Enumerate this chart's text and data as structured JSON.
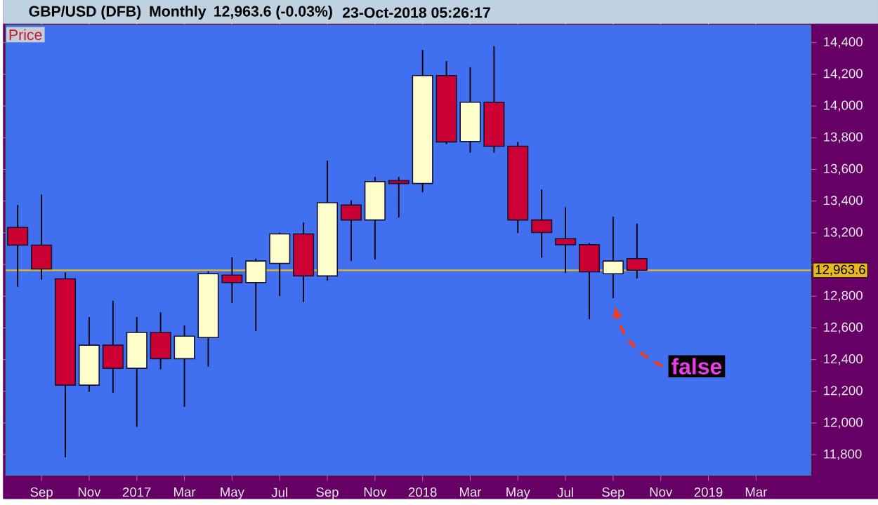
{
  "chart_data": {
    "type": "candlestick",
    "title": "GBP/USD (DFB)",
    "subtitle": "Monthly",
    "ylabel": "Price",
    "x": [
      "2016-08",
      "2016-09",
      "2016-10",
      "2016-11",
      "2016-12",
      "2017-01",
      "2017-02",
      "2017-03",
      "2017-04",
      "2017-05",
      "2017-06",
      "2017-07",
      "2017-08",
      "2017-09",
      "2017-10",
      "2017-11",
      "2017-12",
      "2018-01",
      "2018-02",
      "2018-03",
      "2018-04",
      "2018-05",
      "2018-06",
      "2018-07",
      "2018-08",
      "2018-09",
      "2018-10"
    ],
    "ohlc": [
      [
        13234,
        13375,
        12860,
        13122
      ],
      [
        13122,
        13441,
        12904,
        12972
      ],
      [
        12910,
        12950,
        11784,
        12239
      ],
      [
        12239,
        12668,
        12197,
        12491
      ],
      [
        12491,
        12772,
        12191,
        12345
      ],
      [
        12345,
        12668,
        11976,
        12571
      ],
      [
        12571,
        12698,
        12339,
        12406
      ],
      [
        12406,
        12615,
        12103,
        12548
      ],
      [
        12539,
        12957,
        12356,
        12942
      ],
      [
        12933,
        13045,
        12757,
        12886
      ],
      [
        12886,
        13037,
        12580,
        13022
      ],
      [
        13007,
        13200,
        12801,
        13193
      ],
      [
        13193,
        13266,
        12763,
        12928
      ],
      [
        12928,
        13655,
        12898,
        13390
      ],
      [
        13375,
        13405,
        13022,
        13281
      ],
      [
        13281,
        13552,
        13031,
        13523
      ],
      [
        13529,
        13552,
        13296,
        13511
      ],
      [
        13511,
        14354,
        13455,
        14192
      ],
      [
        14192,
        14283,
        13759,
        13773
      ],
      [
        13776,
        14245,
        13706,
        14024
      ],
      [
        14024,
        14377,
        13706,
        13746
      ],
      [
        13746,
        13773,
        13198,
        13281
      ],
      [
        13281,
        13473,
        13043,
        13202
      ],
      [
        13163,
        13361,
        12948,
        13125
      ],
      [
        13125,
        13134,
        12654,
        12954
      ],
      [
        12942,
        13302,
        12787,
        13022
      ],
      [
        13037,
        13258,
        12913,
        12964
      ]
    ],
    "colors": [
      "#cc0033",
      "#cc0033",
      "#cc0033",
      "#ffffcc",
      "#cc0033",
      "#ffffcc",
      "#cc0033",
      "#ffffcc",
      "#ffffcc",
      "#cc0033",
      "#ffffcc",
      "#ffffcc",
      "#cc0033",
      "#ffffcc",
      "#cc0033",
      "#ffffcc",
      "#cc0033",
      "#ffffcc",
      "#cc0033",
      "#ffffcc",
      "#cc0033",
      "#cc0033",
      "#cc0033",
      "#cc0033",
      "#cc0033",
      "#ffffcc",
      "#cc0033"
    ],
    "xlim": [
      "2016-07-16",
      "2019-05-10"
    ],
    "xticks": [
      {
        "value": "2016-09",
        "label": "Sep"
      },
      {
        "value": "2016-11",
        "label": "Nov"
      },
      {
        "value": "2017-01",
        "label": "2017"
      },
      {
        "value": "2017-03",
        "label": "Mar"
      },
      {
        "value": "2017-05",
        "label": "May"
      },
      {
        "value": "2017-07",
        "label": "Jul"
      },
      {
        "value": "2017-09",
        "label": "Sep"
      },
      {
        "value": "2017-11",
        "label": "Nov"
      },
      {
        "value": "2018-01",
        "label": "2018"
      },
      {
        "value": "2018-03",
        "label": "Mar"
      },
      {
        "value": "2018-05",
        "label": "May"
      },
      {
        "value": "2018-07",
        "label": "Jul"
      },
      {
        "value": "2018-09",
        "label": "Sep"
      },
      {
        "value": "2018-11",
        "label": "Nov"
      },
      {
        "value": "2019-01",
        "label": "2019"
      },
      {
        "value": "2019-03",
        "label": "Mar"
      }
    ],
    "ylim": [
      11670,
      14510
    ],
    "yticks": [
      {
        "value": 11800,
        "label": "11,800"
      },
      {
        "value": 12000,
        "label": "12,000"
      },
      {
        "value": 12200,
        "label": "12,200"
      },
      {
        "value": 12400,
        "label": "12,400"
      },
      {
        "value": 12600,
        "label": "12,600"
      },
      {
        "value": 12800,
        "label": "12,800"
      },
      {
        "value": 13000,
        "label": null
      },
      {
        "value": 13200,
        "label": "13,200"
      },
      {
        "value": 13400,
        "label": "13,400"
      },
      {
        "value": 13600,
        "label": "13,600"
      },
      {
        "value": 13800,
        "label": "13,800"
      },
      {
        "value": 14000,
        "label": "14,000"
      },
      {
        "value": 14200,
        "label": "14,200"
      },
      {
        "value": 14400,
        "label": "14,400"
      }
    ],
    "ref_lines": [
      {
        "axis": "y",
        "value": 12963.6,
        "label": "12,963.6",
        "color": "#e8b820"
      }
    ],
    "annotations": [
      "12,963.6 (-0.03%)",
      "23-Oct-2018 05:26:17",
      "false"
    ],
    "grid": false
  }
}
